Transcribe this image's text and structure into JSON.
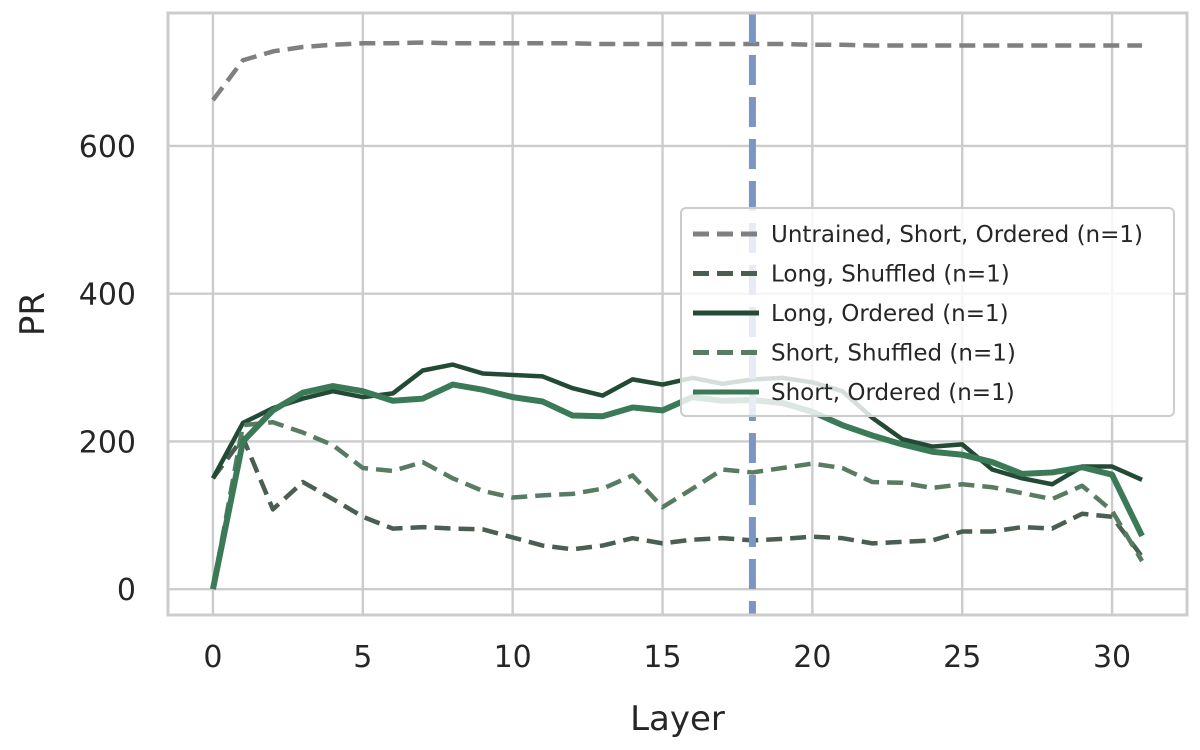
{
  "chart_data": {
    "type": "line",
    "title": "",
    "xlabel": "Layer",
    "ylabel": "PR",
    "xlim": [
      -1.5,
      32.5
    ],
    "ylim": [
      -35,
      780
    ],
    "xticks": [
      0,
      5,
      10,
      15,
      20,
      25,
      30
    ],
    "yticks": [
      0,
      200,
      400,
      600
    ],
    "grid": true,
    "legend_position": "right",
    "x": [
      0,
      1,
      2,
      3,
      4,
      5,
      6,
      7,
      8,
      9,
      10,
      11,
      12,
      13,
      14,
      15,
      16,
      17,
      18,
      19,
      20,
      21,
      22,
      23,
      24,
      25,
      26,
      27,
      28,
      29,
      30,
      31
    ],
    "vertical_line": {
      "x": 18,
      "color": "#7b96c4",
      "style": "dashed"
    },
    "series": [
      {
        "name": "Untrained, Short, Ordered (n=1)",
        "color": "#808080",
        "style": "dashed",
        "values": [
          662,
          716,
          728,
          734,
          737,
          739,
          739,
          740,
          739,
          739,
          739,
          739,
          739,
          738,
          738,
          738,
          738,
          738,
          738,
          738,
          737,
          737,
          736,
          736,
          736,
          736,
          736,
          736,
          736,
          736,
          736,
          736
        ]
      },
      {
        "name": "Long, Shuffled (n=1)",
        "color": "#4a5f52",
        "style": "dashed",
        "values": [
          150,
          205,
          108,
          145,
          122,
          98,
          82,
          84,
          82,
          81,
          70,
          59,
          54,
          59,
          69,
          62,
          67,
          69,
          66,
          68,
          71,
          69,
          62,
          64,
          66,
          78,
          78,
          84,
          82,
          102,
          98,
          44
        ]
      },
      {
        "name": "Long, Ordered (n=1)",
        "color": "#234a35",
        "style": "solid",
        "values": [
          150,
          225,
          245,
          258,
          268,
          260,
          265,
          296,
          304,
          292,
          290,
          288,
          272,
          262,
          284,
          277,
          286,
          278,
          284,
          286,
          280,
          268,
          232,
          203,
          193,
          196,
          162,
          150,
          142,
          166,
          166,
          148
        ]
      },
      {
        "name": "Short, Shuffled (n=1)",
        "color": "#587b64",
        "style": "dashed",
        "values": [
          0,
          222,
          226,
          212,
          195,
          164,
          160,
          172,
          150,
          133,
          124,
          127,
          129,
          136,
          154,
          111,
          136,
          162,
          158,
          164,
          170,
          164,
          145,
          144,
          137,
          142,
          138,
          130,
          122,
          140,
          106,
          38
        ]
      },
      {
        "name": "Short, Ordered (n=1)",
        "color": "#3b7a57",
        "style": "solid",
        "values": [
          0,
          200,
          242,
          266,
          275,
          268,
          255,
          258,
          277,
          270,
          260,
          254,
          235,
          234,
          246,
          242,
          260,
          255,
          256,
          252,
          240,
          222,
          208,
          196,
          186,
          182,
          172,
          156,
          158,
          165,
          155,
          72
        ]
      }
    ]
  }
}
